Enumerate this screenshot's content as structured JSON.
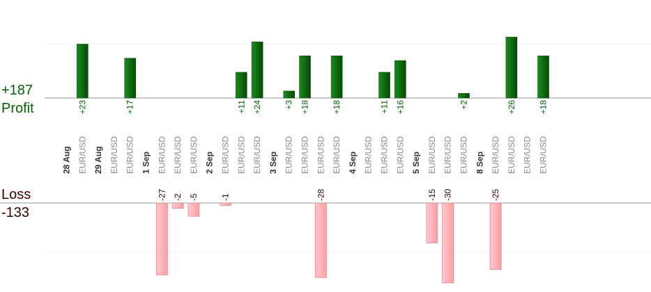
{
  "chart_data": {
    "type": "bar",
    "profit_total": "+187",
    "profit_label": "Profit",
    "loss_label": "Loss",
    "loss_total": "-133",
    "colors": {
      "profit": "#006400",
      "loss": "#ffb6b9",
      "profit_text": "#006400",
      "loss_text": "#3a0000"
    },
    "categories": [
      {
        "label": "28 Aug",
        "kind": "date"
      },
      {
        "label": "EUR/USD",
        "kind": "trade",
        "value": 23,
        "value_label": "+23"
      },
      {
        "label": "29 Aug",
        "kind": "date"
      },
      {
        "label": "EUR/USD",
        "kind": "trade"
      },
      {
        "label": "EUR/USD",
        "kind": "trade",
        "value": 17,
        "value_label": "+17"
      },
      {
        "label": "1 Sep",
        "kind": "date"
      },
      {
        "label": "EUR/USD",
        "kind": "trade",
        "value": -27,
        "value_label": "-27"
      },
      {
        "label": "EUR/USD",
        "kind": "trade",
        "value": -2,
        "value_label": "-2"
      },
      {
        "label": "EUR/USD",
        "kind": "trade",
        "value": -5,
        "value_label": "-5"
      },
      {
        "label": "2 Sep",
        "kind": "date"
      },
      {
        "label": "EUR/USD",
        "kind": "trade",
        "value": -1,
        "value_label": "-1"
      },
      {
        "label": "EUR/USD",
        "kind": "trade",
        "value": 11,
        "value_label": "+11"
      },
      {
        "label": "EUR/USD",
        "kind": "trade",
        "value": 24,
        "value_label": "+24"
      },
      {
        "label": "3 Sep",
        "kind": "date"
      },
      {
        "label": "EUR/USD",
        "kind": "trade",
        "value": 3,
        "value_label": "+3"
      },
      {
        "label": "EUR/USD",
        "kind": "trade",
        "value": 18,
        "value_label": "+18"
      },
      {
        "label": "EUR/USD",
        "kind": "trade",
        "value": -28,
        "value_label": "-28"
      },
      {
        "label": "EUR/USD",
        "kind": "trade",
        "value": 18,
        "value_label": "+18"
      },
      {
        "label": "4 Sep",
        "kind": "date"
      },
      {
        "label": "EUR/USD",
        "kind": "trade"
      },
      {
        "label": "EUR/USD",
        "kind": "trade",
        "value": 11,
        "value_label": "+11"
      },
      {
        "label": "EUR/USD",
        "kind": "trade",
        "value": 16,
        "value_label": "+16"
      },
      {
        "label": "5 Sep",
        "kind": "date"
      },
      {
        "label": "EUR/USD",
        "kind": "trade",
        "value": -15,
        "value_label": "-15"
      },
      {
        "label": "EUR/USD",
        "kind": "trade",
        "value": -30,
        "value_label": "-30"
      },
      {
        "label": "EUR/USD",
        "kind": "trade",
        "value": 2,
        "value_label": "+2"
      },
      {
        "label": "8 Sep",
        "kind": "date"
      },
      {
        "label": "EUR/USD",
        "kind": "trade",
        "value": -25,
        "value_label": "-25"
      },
      {
        "label": "EUR/USD",
        "kind": "trade",
        "value": 26,
        "value_label": "+26"
      },
      {
        "label": "EUR/USD",
        "kind": "trade"
      },
      {
        "label": "EUR/USD",
        "kind": "trade",
        "value": 18,
        "value_label": "+18"
      }
    ]
  }
}
